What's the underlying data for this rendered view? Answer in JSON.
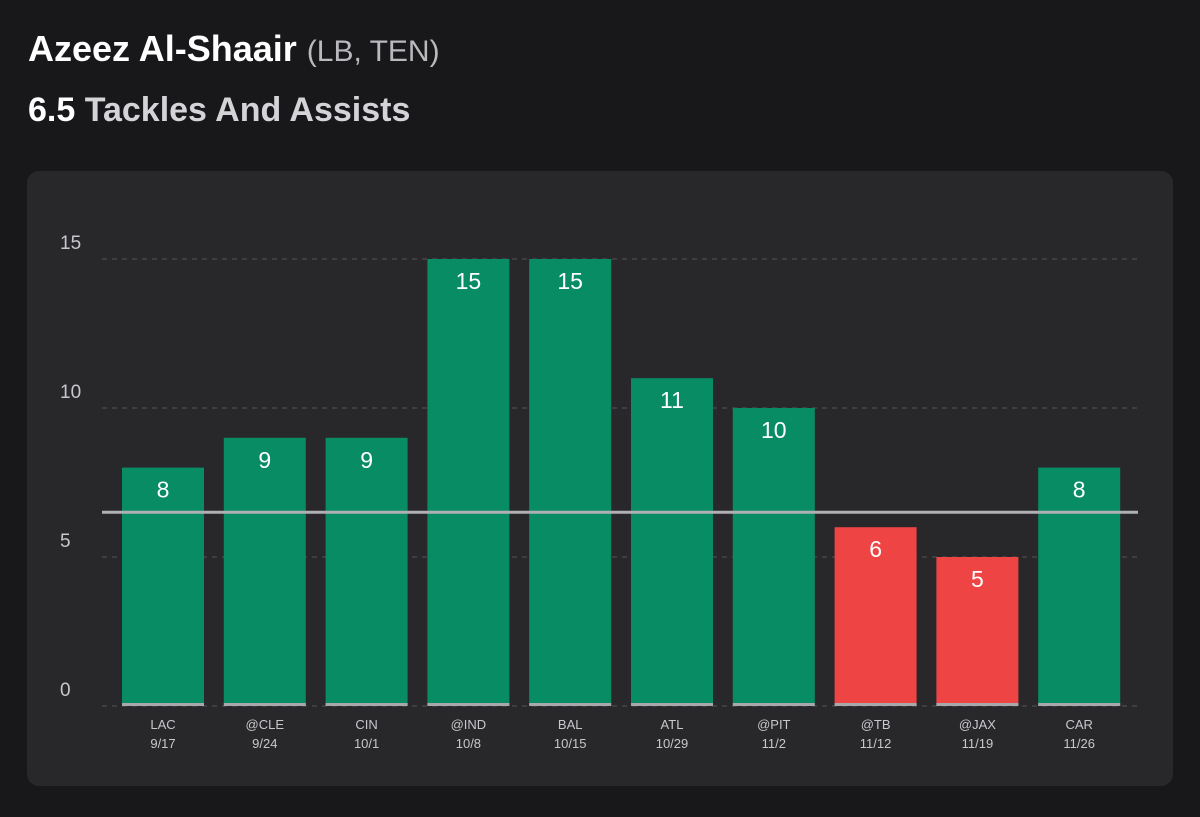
{
  "header": {
    "player_name": "Azeez Al-Shaair",
    "player_meta": "(LB, TEN)",
    "line_value": "6.5",
    "stat_name": "Tackles And Assists"
  },
  "colors": {
    "background": "#18181a",
    "card": "#28282b",
    "over": "#088c64",
    "under": "#ee4444",
    "line": "#b0b0b4",
    "grid": "#55555a",
    "baseline_cap": "#a8a8ac"
  },
  "chart_data": {
    "type": "bar",
    "categories": [
      "LAC",
      "@CLE",
      "CIN",
      "@IND",
      "BAL",
      "ATL",
      "@PIT",
      "@TB",
      "@JAX",
      "CAR"
    ],
    "dates": [
      "9/17",
      "9/24",
      "10/1",
      "10/8",
      "10/15",
      "10/29",
      "11/2",
      "11/12",
      "11/19",
      "11/26"
    ],
    "values": [
      8,
      9,
      9,
      15,
      15,
      11,
      10,
      6,
      5,
      8
    ],
    "threshold": 6.5,
    "ylim": [
      0,
      15
    ],
    "yticks": [
      0,
      5,
      10,
      15
    ],
    "grid": true,
    "title": "Azeez Al-Shaair (LB, TEN)",
    "subtitle": "6.5 Tackles And Assists"
  }
}
